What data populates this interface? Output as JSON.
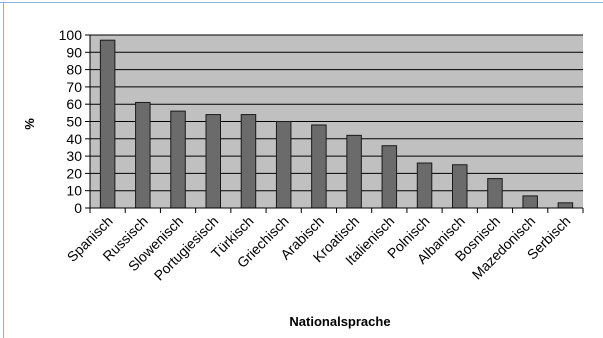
{
  "chart_data": {
    "type": "bar",
    "title": "",
    "xlabel": "Nationalsprache",
    "ylabel": "%",
    "ylim": [
      0,
      100
    ],
    "yticks": [
      "0",
      "10",
      "20",
      "30",
      "40",
      "50",
      "60",
      "70",
      "80",
      "90",
      "100"
    ],
    "grid": true,
    "categories": [
      "Spanisch",
      "Russisch",
      "Slowenisch",
      "Portugiesisch",
      "Türkisch",
      "Griechisch",
      "Arabisch",
      "Kroatisch",
      "Italienisch",
      "Polnisch",
      "Albanisch",
      "Bosnisch",
      "Mazedonisch",
      "Serbisch"
    ],
    "values": [
      97,
      61,
      56,
      54,
      54,
      50,
      48,
      42,
      36,
      26,
      25,
      17,
      7,
      3
    ],
    "colors": {
      "plot_background": "#c0c0c0",
      "bar_fill": "#6b6b6b",
      "bar_stroke": "#1a1a1a",
      "gridline": "#000000",
      "frame_border": "#8db2da"
    }
  }
}
